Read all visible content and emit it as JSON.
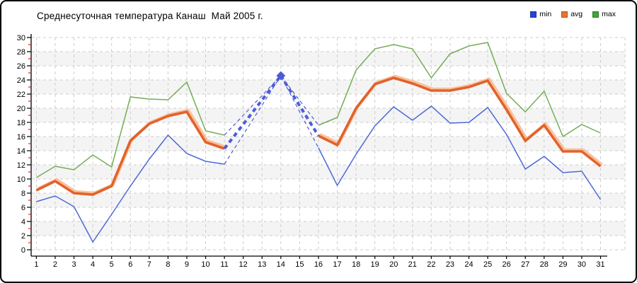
{
  "chart_data": {
    "type": "line",
    "title": "Среднесуточная температура Канаш  Май 2005 г.",
    "legend_position": "top-right",
    "grid": true,
    "x": [
      1,
      2,
      3,
      4,
      5,
      6,
      7,
      8,
      9,
      10,
      11,
      12,
      13,
      14,
      15,
      16,
      17,
      18,
      19,
      20,
      21,
      22,
      23,
      24,
      25,
      26,
      27,
      28,
      29,
      30,
      31
    ],
    "ylim": [
      0,
      30
    ],
    "ytick_step": 2,
    "missing_data_days": [
      12,
      13,
      15
    ],
    "interpolated_gap_days": [
      [
        11,
        14
      ],
      [
        14,
        16
      ]
    ],
    "marker_day": 14,
    "series": [
      {
        "name": "min",
        "swatch": "#2742d6",
        "color": "#4b69d8",
        "thick": false,
        "values": [
          6.8,
          7.6,
          6.1,
          1.1,
          5.0,
          9.0,
          12.8,
          16.2,
          13.6,
          12.5,
          12.1,
          null,
          null,
          24.6,
          null,
          14.4,
          9.1,
          13.5,
          17.5,
          20.2,
          18.3,
          20.3,
          17.9,
          18.0,
          20.1,
          16.3,
          11.4,
          13.2,
          10.9,
          11.1,
          7.1
        ]
      },
      {
        "name": "avg",
        "swatch": "#e8742f",
        "color": "#e2622b",
        "halo": "#f8c29c",
        "thick": true,
        "values": [
          8.4,
          9.7,
          8.0,
          7.8,
          9.0,
          15.4,
          17.8,
          18.9,
          19.5,
          15.2,
          14.3,
          null,
          null,
          24.6,
          null,
          16.1,
          14.8,
          20.0,
          23.4,
          24.3,
          23.5,
          22.5,
          22.5,
          23.0,
          23.9,
          19.8,
          15.4,
          17.6,
          13.9,
          13.9,
          11.8
        ]
      },
      {
        "name": "max",
        "swatch": "#3ea637",
        "color": "#74ad55",
        "thick": false,
        "values": [
          10.2,
          11.8,
          11.3,
          13.4,
          11.7,
          21.6,
          21.3,
          21.2,
          23.7,
          16.8,
          16.2,
          null,
          null,
          24.6,
          null,
          17.6,
          18.7,
          25.4,
          28.4,
          29.0,
          28.4,
          24.3,
          27.7,
          28.8,
          29.3,
          22.1,
          19.5,
          22.4,
          16.0,
          17.7,
          16.5
        ]
      }
    ],
    "colors": {
      "grid": "#cdcdcd",
      "band": "#f4f4f4",
      "axis": "#000000",
      "minor_tick": "#cc2b2b",
      "gap_line": "#4d5cd6"
    }
  }
}
